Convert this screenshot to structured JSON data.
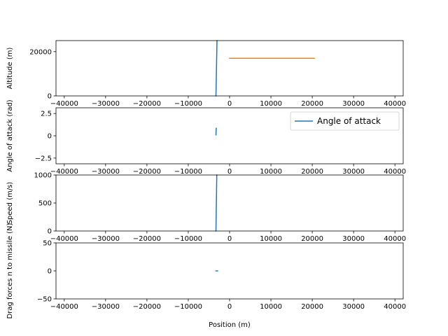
{
  "figure": {
    "xlabel": "Position (m)",
    "colors": {
      "blue": "#1f77b4",
      "orange": "#ff7f0e"
    }
  },
  "chart_data": [
    {
      "type": "line",
      "ylabel": "Altitude (m)",
      "xlim": [
        -42000,
        42000
      ],
      "ylim": [
        0,
        25000
      ],
      "xticks": [
        -40000,
        -30000,
        -20000,
        -10000,
        0,
        10000,
        20000,
        30000,
        40000
      ],
      "yticks": [
        0,
        20000
      ],
      "series": [
        {
          "color": "#1f77b4",
          "x": [
            -3300,
            -3250,
            -3200,
            -3150,
            -3100,
            -3050
          ],
          "y": [
            0,
            5000,
            10000,
            15000,
            20000,
            25000
          ]
        },
        {
          "color": "#ff7f0e",
          "x": [
            0,
            20500
          ],
          "y": [
            17000,
            17000
          ]
        }
      ]
    },
    {
      "type": "line",
      "ylabel": "Angle of attack (rad)",
      "xlim": [
        -42000,
        42000
      ],
      "ylim": [
        -3.14,
        3.14
      ],
      "xticks": [
        -40000,
        -30000,
        -20000,
        -10000,
        0,
        10000,
        20000,
        30000,
        40000
      ],
      "yticks": [
        -2.5,
        0.0,
        2.5
      ],
      "legend": {
        "label": "Angle of attack",
        "loc": "upper right"
      },
      "series": [
        {
          "name": "Angle of attack",
          "color": "#1f77b4",
          "x": [
            -3300,
            -3280,
            -3260,
            -3230
          ],
          "y": [
            0.1,
            0.3,
            0.6,
            0.85
          ]
        }
      ]
    },
    {
      "type": "line",
      "ylabel": "Speed (m/s)",
      "xlim": [
        -42000,
        42000
      ],
      "ylim": [
        0,
        1000
      ],
      "xticks": [
        -40000,
        -30000,
        -20000,
        -10000,
        0,
        10000,
        20000,
        30000,
        40000
      ],
      "yticks": [
        0,
        500,
        1000
      ],
      "series": [
        {
          "color": "#1f77b4",
          "x": [
            -3300,
            -3250,
            -3200,
            -3150,
            -3100
          ],
          "y": [
            0,
            250,
            500,
            750,
            1000
          ]
        }
      ]
    },
    {
      "type": "line",
      "ylabel": "Drag forces n to missile (N)",
      "xlim": [
        -42000,
        42000
      ],
      "ylim": [
        -50,
        50
      ],
      "xticks": [
        -40000,
        -30000,
        -20000,
        -10000,
        0,
        10000,
        20000,
        30000,
        40000
      ],
      "yticks": [
        -50,
        0,
        50
      ],
      "series": [
        {
          "color": "#1f77b4",
          "x": [
            -3300,
            -2900
          ],
          "y": [
            0,
            0
          ]
        }
      ]
    }
  ]
}
